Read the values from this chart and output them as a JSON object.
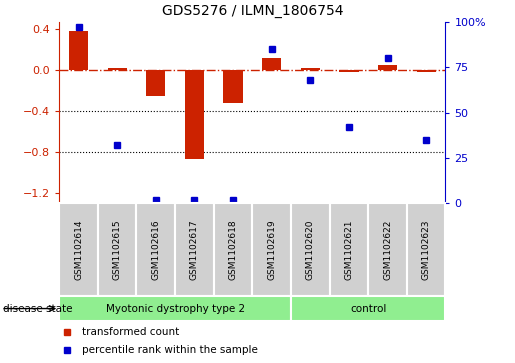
{
  "title": "GDS5276 / ILMN_1806754",
  "samples": [
    "GSM1102614",
    "GSM1102615",
    "GSM1102616",
    "GSM1102617",
    "GSM1102618",
    "GSM1102619",
    "GSM1102620",
    "GSM1102621",
    "GSM1102622",
    "GSM1102623"
  ],
  "transformed_count": [
    0.38,
    0.02,
    -0.25,
    -0.87,
    -0.32,
    0.12,
    0.02,
    -0.02,
    0.05,
    -0.02
  ],
  "percentile_rank": [
    97,
    32,
    2,
    2,
    2,
    85,
    68,
    42,
    80,
    35
  ],
  "disease_groups": [
    {
      "label": "Myotonic dystrophy type 2",
      "start": 0,
      "end": 6
    },
    {
      "label": "control",
      "start": 6,
      "end": 10
    }
  ],
  "disease_state_label": "disease state",
  "legend_items": [
    {
      "label": "transformed count",
      "color": "#cc2200"
    },
    {
      "label": "percentile rank within the sample",
      "color": "#0000cc"
    }
  ],
  "ylim_left": [
    -1.3,
    0.47
  ],
  "ylim_right": [
    0,
    100
  ],
  "yticks_left": [
    0.4,
    0.0,
    -0.4,
    -0.8,
    -1.2
  ],
  "yticks_right": [
    100,
    75,
    50,
    25,
    0
  ],
  "bar_color": "#cc2200",
  "dot_color": "#0000cc",
  "green_color": "#90EE90",
  "grey_color": "#d0d0d0",
  "label_fontsize": 8,
  "tick_fontsize": 8,
  "title_fontsize": 10
}
